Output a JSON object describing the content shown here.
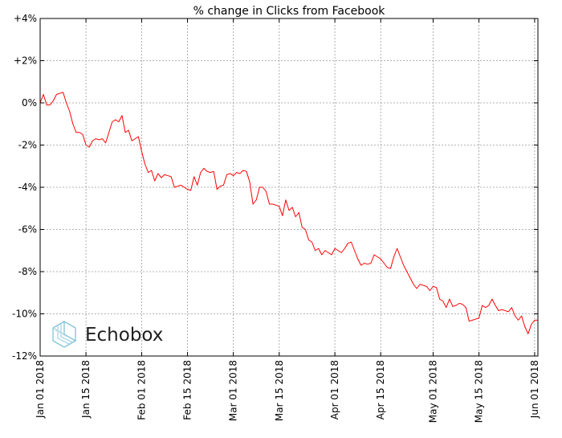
{
  "chart_data": {
    "type": "line",
    "title": "% change in Clicks from Facebook",
    "xlabel": "",
    "ylabel": "",
    "ylim": [
      -12,
      4
    ],
    "xlim": [
      "2018-01-01",
      "2018-06-02"
    ],
    "grid": true,
    "y_ticks": [
      {
        "value": 4,
        "label": "+4%"
      },
      {
        "value": 2,
        "label": "+2%"
      },
      {
        "value": 0,
        "label": "0%"
      },
      {
        "value": -2,
        "label": "-2%"
      },
      {
        "value": -4,
        "label": "-4%"
      },
      {
        "value": -6,
        "label": "-6%"
      },
      {
        "value": -8,
        "label": "-8%"
      },
      {
        "value": -10,
        "label": "-10%"
      },
      {
        "value": -12,
        "label": "-12%"
      }
    ],
    "x_ticks": [
      {
        "value": "2018-01-01",
        "label": "Jan 01 2018"
      },
      {
        "value": "2018-01-15",
        "label": "Jan 15 2018"
      },
      {
        "value": "2018-02-01",
        "label": "Feb 01 2018"
      },
      {
        "value": "2018-02-15",
        "label": "Feb 15 2018"
      },
      {
        "value": "2018-03-01",
        "label": "Mar 01 2018"
      },
      {
        "value": "2018-03-15",
        "label": "Mar 15 2018"
      },
      {
        "value": "2018-04-01",
        "label": "Apr 01 2018"
      },
      {
        "value": "2018-04-15",
        "label": "Apr 15 2018"
      },
      {
        "value": "2018-05-01",
        "label": "May 01 2018"
      },
      {
        "value": "2018-05-15",
        "label": "May 15 2018"
      },
      {
        "value": "2018-06-01",
        "label": "Jun 01 2018"
      }
    ],
    "series": [
      {
        "color": "#ff0000",
        "points": [
          [
            "2018-01-01",
            0.0
          ],
          [
            "2018-01-02",
            0.4
          ],
          [
            "2018-01-03",
            -0.1
          ],
          [
            "2018-01-04",
            -0.1
          ],
          [
            "2018-01-05",
            0.1
          ],
          [
            "2018-01-06",
            0.4
          ],
          [
            "2018-01-07",
            0.45
          ],
          [
            "2018-01-08",
            0.5
          ],
          [
            "2018-01-09",
            0.0
          ],
          [
            "2018-01-10",
            -0.4
          ],
          [
            "2018-01-11",
            -1.0
          ],
          [
            "2018-01-12",
            -1.4
          ],
          [
            "2018-01-13",
            -1.4
          ],
          [
            "2018-01-14",
            -1.5
          ],
          [
            "2018-01-15",
            -2.0
          ],
          [
            "2018-01-16",
            -2.1
          ],
          [
            "2018-01-17",
            -1.8
          ],
          [
            "2018-01-18",
            -1.7
          ],
          [
            "2018-01-19",
            -1.75
          ],
          [
            "2018-01-20",
            -1.7
          ],
          [
            "2018-01-21",
            -1.9
          ],
          [
            "2018-01-22",
            -1.4
          ],
          [
            "2018-01-23",
            -0.9
          ],
          [
            "2018-01-24",
            -0.8
          ],
          [
            "2018-01-25",
            -0.9
          ],
          [
            "2018-01-26",
            -0.6
          ],
          [
            "2018-01-27",
            -1.4
          ],
          [
            "2018-01-28",
            -1.3
          ],
          [
            "2018-01-29",
            -1.8
          ],
          [
            "2018-01-30",
            -1.7
          ],
          [
            "2018-01-31",
            -1.6
          ],
          [
            "2018-02-01",
            -2.3
          ],
          [
            "2018-02-02",
            -2.9
          ],
          [
            "2018-02-03",
            -3.3
          ],
          [
            "2018-02-04",
            -3.2
          ],
          [
            "2018-02-05",
            -3.7
          ],
          [
            "2018-02-06",
            -3.35
          ],
          [
            "2018-02-07",
            -3.55
          ],
          [
            "2018-02-08",
            -3.4
          ],
          [
            "2018-02-09",
            -3.45
          ],
          [
            "2018-02-10",
            -3.5
          ],
          [
            "2018-02-11",
            -4.0
          ],
          [
            "2018-02-12",
            -3.95
          ],
          [
            "2018-02-13",
            -3.9
          ],
          [
            "2018-02-14",
            -4.0
          ],
          [
            "2018-02-15",
            -4.1
          ],
          [
            "2018-02-16",
            -4.15
          ],
          [
            "2018-02-17",
            -3.5
          ],
          [
            "2018-02-18",
            -3.9
          ],
          [
            "2018-02-19",
            -3.3
          ],
          [
            "2018-02-20",
            -3.1
          ],
          [
            "2018-02-21",
            -3.25
          ],
          [
            "2018-02-22",
            -3.3
          ],
          [
            "2018-02-23",
            -3.25
          ],
          [
            "2018-02-24",
            -4.1
          ],
          [
            "2018-02-25",
            -3.95
          ],
          [
            "2018-02-26",
            -3.9
          ],
          [
            "2018-02-27",
            -3.4
          ],
          [
            "2018-02-28",
            -3.35
          ],
          [
            "2018-03-01",
            -3.45
          ],
          [
            "2018-03-02",
            -3.3
          ],
          [
            "2018-03-03",
            -3.35
          ],
          [
            "2018-03-04",
            -3.2
          ],
          [
            "2018-03-05",
            -3.25
          ],
          [
            "2018-03-06",
            -3.75
          ],
          [
            "2018-03-07",
            -4.8
          ],
          [
            "2018-03-08",
            -4.6
          ],
          [
            "2018-03-09",
            -4.0
          ],
          [
            "2018-03-10",
            -4.0
          ],
          [
            "2018-03-11",
            -4.2
          ],
          [
            "2018-03-12",
            -4.8
          ],
          [
            "2018-03-13",
            -4.8
          ],
          [
            "2018-03-14",
            -4.85
          ],
          [
            "2018-03-15",
            -4.9
          ],
          [
            "2018-03-16",
            -5.35
          ],
          [
            "2018-03-17",
            -4.6
          ],
          [
            "2018-03-18",
            -5.1
          ],
          [
            "2018-03-19",
            -4.95
          ],
          [
            "2018-03-20",
            -5.4
          ],
          [
            "2018-03-21",
            -5.2
          ],
          [
            "2018-03-22",
            -5.9
          ],
          [
            "2018-03-23",
            -6.0
          ],
          [
            "2018-03-24",
            -6.5
          ],
          [
            "2018-03-25",
            -6.6
          ],
          [
            "2018-03-26",
            -7.0
          ],
          [
            "2018-03-27",
            -6.9
          ],
          [
            "2018-03-28",
            -7.2
          ],
          [
            "2018-03-29",
            -7.0
          ],
          [
            "2018-03-30",
            -7.1
          ],
          [
            "2018-03-31",
            -7.2
          ],
          [
            "2018-04-01",
            -6.9
          ],
          [
            "2018-04-02",
            -7.0
          ],
          [
            "2018-04-03",
            -7.1
          ],
          [
            "2018-04-04",
            -6.9
          ],
          [
            "2018-04-05",
            -6.65
          ],
          [
            "2018-04-06",
            -6.6
          ],
          [
            "2018-04-07",
            -7.0
          ],
          [
            "2018-04-08",
            -7.4
          ],
          [
            "2018-04-09",
            -7.7
          ],
          [
            "2018-04-10",
            -7.6
          ],
          [
            "2018-04-11",
            -7.65
          ],
          [
            "2018-04-12",
            -7.6
          ],
          [
            "2018-04-13",
            -7.2
          ],
          [
            "2018-04-14",
            -7.3
          ],
          [
            "2018-04-15",
            -7.4
          ],
          [
            "2018-04-16",
            -7.6
          ],
          [
            "2018-04-17",
            -7.8
          ],
          [
            "2018-04-18",
            -7.85
          ],
          [
            "2018-04-19",
            -7.3
          ],
          [
            "2018-04-20",
            -6.9
          ],
          [
            "2018-04-21",
            -7.3
          ],
          [
            "2018-04-22",
            -7.7
          ],
          [
            "2018-04-23",
            -8.0
          ],
          [
            "2018-04-24",
            -8.3
          ],
          [
            "2018-04-25",
            -8.6
          ],
          [
            "2018-04-26",
            -8.8
          ],
          [
            "2018-04-27",
            -8.6
          ],
          [
            "2018-04-28",
            -8.65
          ],
          [
            "2018-04-29",
            -8.7
          ],
          [
            "2018-04-30",
            -8.9
          ],
          [
            "2018-05-01",
            -8.7
          ],
          [
            "2018-05-02",
            -8.75
          ],
          [
            "2018-05-03",
            -9.3
          ],
          [
            "2018-05-04",
            -9.4
          ],
          [
            "2018-05-05",
            -9.7
          ],
          [
            "2018-05-06",
            -9.3
          ],
          [
            "2018-05-07",
            -9.65
          ],
          [
            "2018-05-08",
            -9.6
          ],
          [
            "2018-05-09",
            -9.5
          ],
          [
            "2018-05-10",
            -9.55
          ],
          [
            "2018-05-11",
            -9.7
          ],
          [
            "2018-05-12",
            -10.35
          ],
          [
            "2018-05-13",
            -10.3
          ],
          [
            "2018-05-14",
            -10.25
          ],
          [
            "2018-05-15",
            -10.2
          ],
          [
            "2018-05-16",
            -9.6
          ],
          [
            "2018-05-17",
            -9.7
          ],
          [
            "2018-05-18",
            -9.6
          ],
          [
            "2018-05-19",
            -9.3
          ],
          [
            "2018-05-20",
            -9.6
          ],
          [
            "2018-05-21",
            -9.85
          ],
          [
            "2018-05-22",
            -9.8
          ],
          [
            "2018-05-23",
            -9.85
          ],
          [
            "2018-05-24",
            -9.9
          ],
          [
            "2018-05-25",
            -9.7
          ],
          [
            "2018-05-26",
            -10.1
          ],
          [
            "2018-05-27",
            -10.3
          ],
          [
            "2018-05-28",
            -10.1
          ],
          [
            "2018-05-29",
            -10.6
          ],
          [
            "2018-05-30",
            -10.95
          ],
          [
            "2018-05-31",
            -10.5
          ],
          [
            "2018-06-01",
            -10.3
          ],
          [
            "2018-06-02",
            -10.3
          ]
        ]
      }
    ]
  },
  "watermark": {
    "text": "Echobox",
    "icon": "echobox-logo-icon",
    "icon_color": "#7fc3d6"
  }
}
